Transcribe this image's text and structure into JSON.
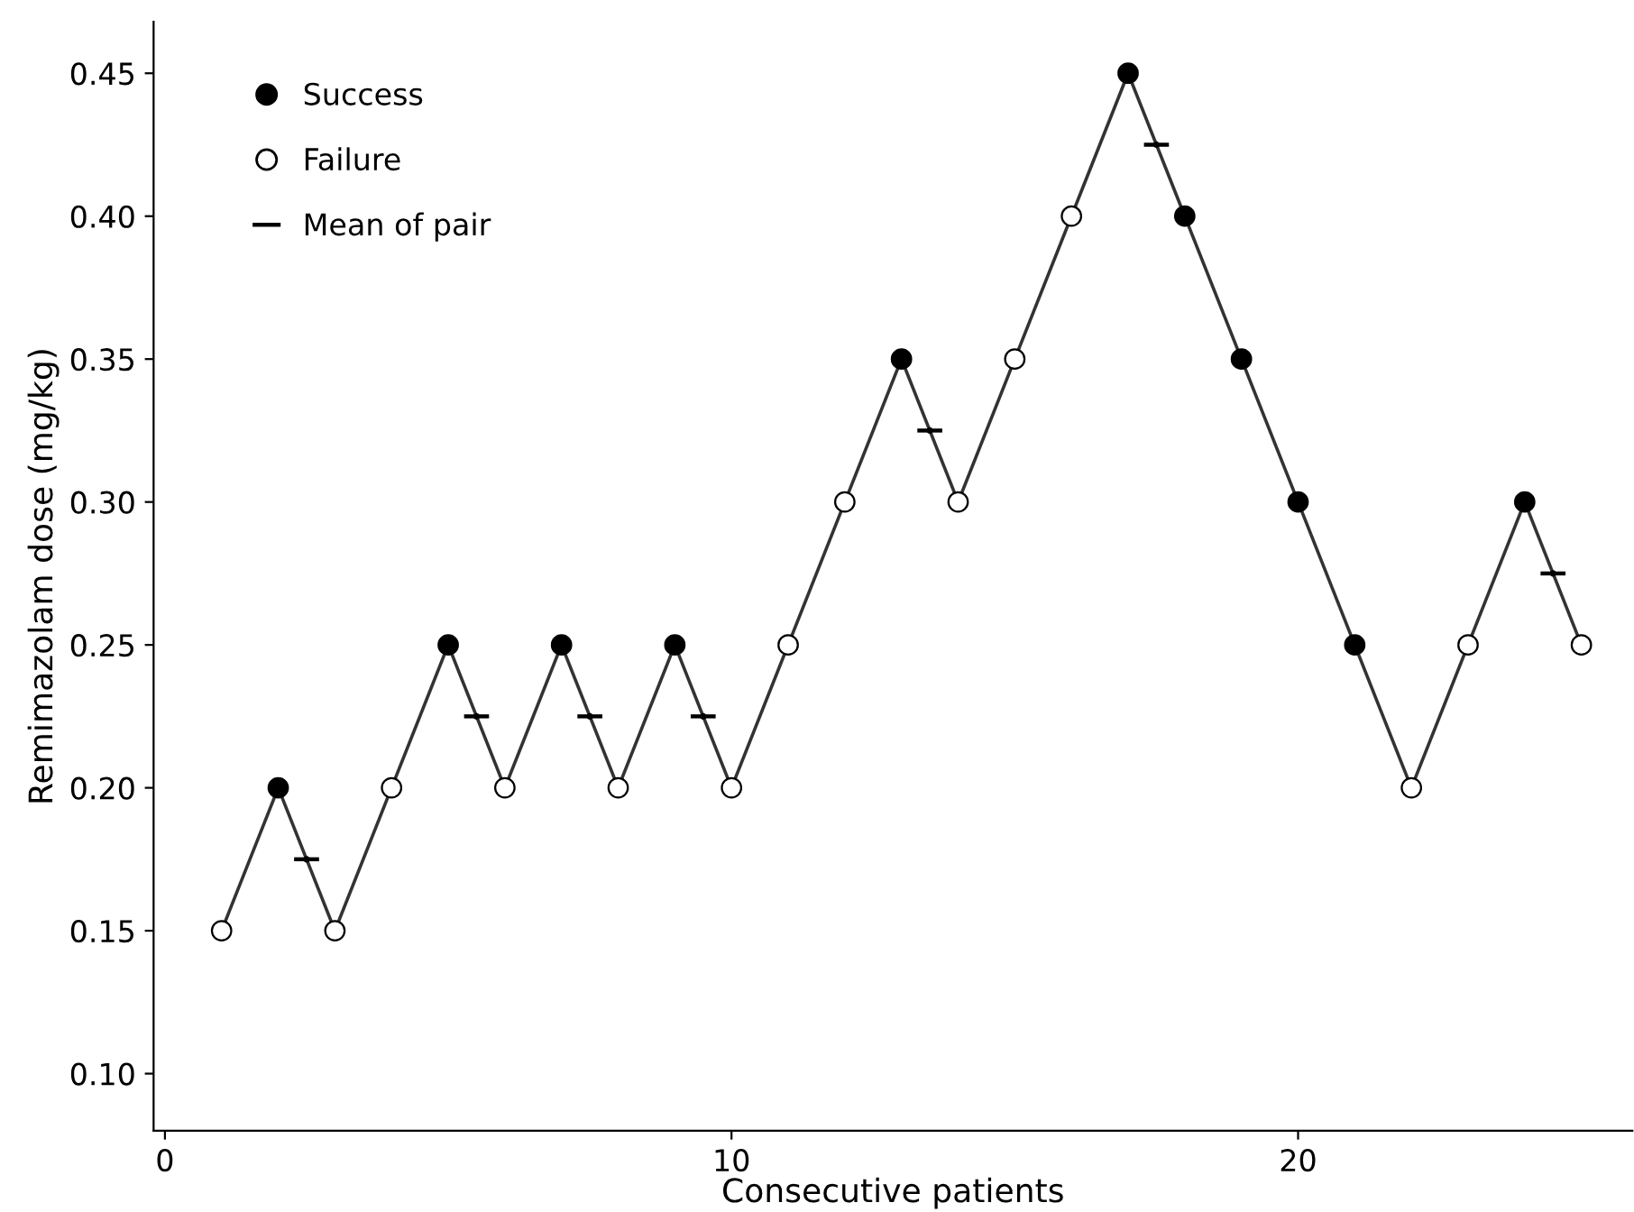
{
  "chart_data": {
    "type": "scatter",
    "xlabel": "Consecutive patients",
    "ylabel": "Remimazolam dose (mg/kg)",
    "xlim": [
      -0.2,
      25.9
    ],
    "xticks": [
      0,
      10,
      20
    ],
    "ylim": [
      0.08,
      0.468
    ],
    "yticks": [
      {
        "value": 0.1,
        "label": "0.10"
      },
      0.15,
      {
        "value": 0.2,
        "label": "0.20"
      },
      0.25,
      {
        "value": 0.3,
        "label": "0.30"
      },
      0.35,
      {
        "value": 0.4,
        "label": "0.40"
      },
      0.45
    ],
    "grid": false,
    "legend": "top left",
    "series": [
      {
        "type": "line",
        "color": "#333333",
        "marker": "none",
        "line_style": "solid",
        "x": [
          1,
          2,
          3,
          4,
          5,
          6,
          7,
          8,
          9,
          10,
          11,
          12,
          13,
          14,
          15,
          16,
          17,
          18,
          19,
          20,
          21,
          22,
          23,
          24,
          25
        ],
        "values": [
          0.15,
          0.2,
          0.15,
          0.2,
          0.25,
          0.2,
          0.25,
          0.2,
          0.25,
          0.2,
          0.25,
          0.3,
          0.35,
          0.3,
          0.35,
          0.4,
          0.45,
          0.4,
          0.35,
          0.3,
          0.25,
          0.2,
          0.25,
          0.3,
          0.25
        ]
      },
      {
        "name": "Success",
        "color": "#000000",
        "marker": "circle",
        "x": [
          2,
          5,
          7,
          9,
          13,
          17,
          18,
          19,
          20,
          21,
          24
        ],
        "values": [
          0.2,
          0.25,
          0.25,
          0.25,
          0.35,
          0.45,
          0.4,
          0.35,
          0.3,
          0.25,
          0.3
        ]
      },
      {
        "name": "Failure",
        "color": "#ffffff",
        "marker": "circle",
        "x": [
          1,
          3,
          4,
          6,
          8,
          10,
          11,
          12,
          14,
          15,
          16,
          22,
          23,
          25
        ],
        "values": [
          0.15,
          0.15,
          0.2,
          0.2,
          0.2,
          0.2,
          0.25,
          0.3,
          0.3,
          0.35,
          0.4,
          0.2,
          0.25,
          0.25
        ]
      },
      {
        "name": "Mean of pair",
        "color": "#000000",
        "marker": "circle",
        "x": [
          2.5,
          5.5,
          7.5,
          9.5,
          13.5,
          17.5,
          24.5
        ],
        "values": [
          0.175,
          0.225,
          0.225,
          0.225,
          0.325,
          0.425,
          0.275
        ],
        "xerrors": [
          0.22,
          0.22,
          0.22,
          0.22,
          0.22,
          0.22,
          0.22
        ]
      }
    ]
  }
}
